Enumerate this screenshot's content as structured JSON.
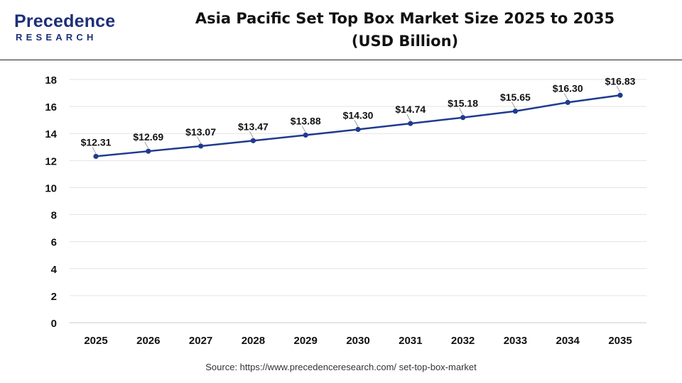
{
  "header": {
    "logo_top": "Precedence",
    "logo_bottom": "RESEARCH",
    "title_line1": "Asia Pacific Set Top Box Market Size 2025 to 2035",
    "title_line2": "(USD Billion)"
  },
  "source": "Source: https://www.precedenceresearch.com/ set-top-box-market",
  "colors": {
    "line": "#1f3b8f",
    "grid": "#e3e3e3",
    "brand": "#1c2f7a"
  },
  "chart_data": {
    "type": "line",
    "title": "Asia Pacific Set Top Box Market Size 2025 to 2035",
    "subtitle": "(USD Billion)",
    "xlabel": "",
    "ylabel": "",
    "categories": [
      "2025",
      "2026",
      "2027",
      "2028",
      "2029",
      "2030",
      "2031",
      "2032",
      "2033",
      "2034",
      "2035"
    ],
    "values": [
      12.31,
      12.69,
      13.07,
      13.47,
      13.88,
      14.3,
      14.74,
      15.18,
      15.65,
      16.3,
      16.83
    ],
    "data_labels": [
      "$12.31",
      "$12.69",
      "$13.07",
      "$13.47",
      "$13.88",
      "$14.30",
      "$14.74",
      "$15.18",
      "$15.65",
      "$16.30",
      "$16.83"
    ],
    "ylim": [
      0,
      18
    ],
    "yticks": [
      0,
      2,
      4,
      6,
      8,
      10,
      12,
      14,
      16,
      18
    ],
    "grid": true,
    "legend": "none"
  }
}
